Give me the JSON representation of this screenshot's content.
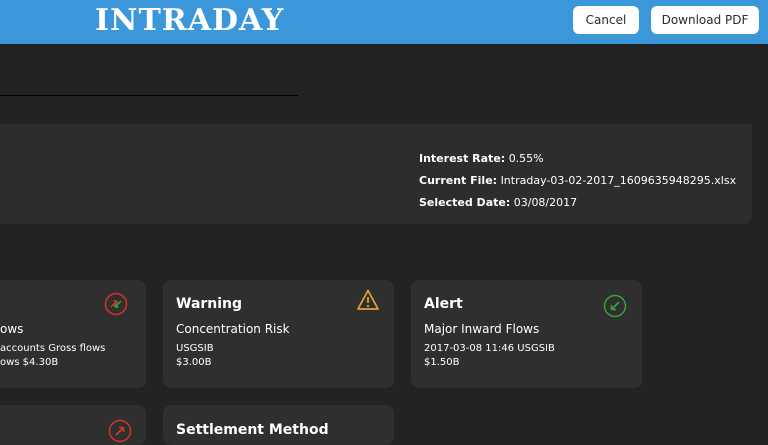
{
  "header": {
    "brand": "INTRADAY",
    "cancel_label": "Cancel",
    "download_label": "Download PDF"
  },
  "info": {
    "interest_rate_label": "Interest Rate:",
    "interest_rate_value": "0.55%",
    "current_file_label": "Current File:",
    "current_file_value": "Intraday-03-02-2017_1609635948295.xlsx",
    "selected_date_label": "Selected Date:",
    "selected_date_value": "03/08/2017"
  },
  "cards": [
    {
      "title": "",
      "subtitle": "ows",
      "line1": "accounts Gross flows",
      "line2": "ows $4.30B",
      "icon": "flows-arrows-icon",
      "icon_color": "#d9342b"
    },
    {
      "title": "Warning",
      "subtitle": "Concentration Risk",
      "line1": "USGSIB",
      "line2": "$3.00B",
      "icon": "warning-triangle-icon",
      "icon_color": "#e0a030"
    },
    {
      "title": "Alert",
      "subtitle": "Major Inward Flows",
      "line1": "2017-03-08 11:46 USGSIB",
      "line2": "$1.50B",
      "icon": "inward-arrow-icon",
      "icon_color": "#3aa63a"
    },
    {
      "title": "",
      "icon": "outward-arrow-icon",
      "icon_color": "#d9342b"
    },
    {
      "title": "Settlement Method"
    }
  ]
}
